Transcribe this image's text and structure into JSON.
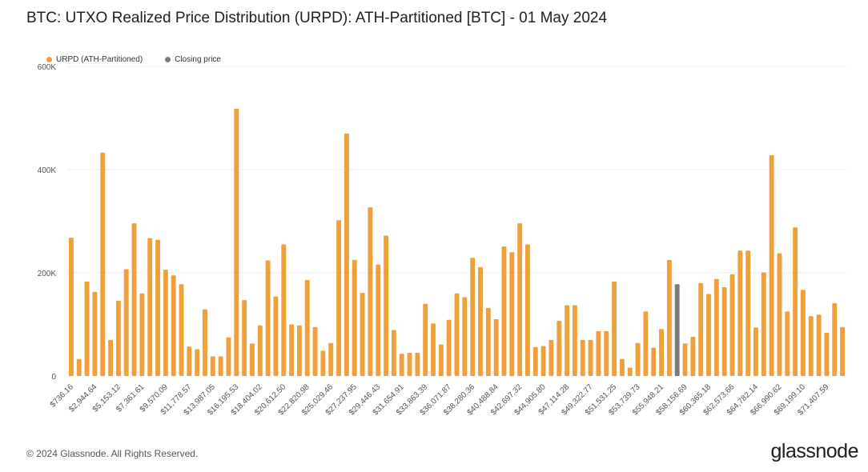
{
  "title": "BTC: UTXO Realized Price Distribution (URPD): ATH-Partitioned [BTC] - 01 May 2024",
  "legend": {
    "urpd": "URPD (ATH-Partitioned)",
    "closing": "Closing price"
  },
  "footer": "© 2024 Glassnode. All Rights Reserved.",
  "logo": "glassnode",
  "colors": {
    "bar": "#f0a03a",
    "closing": "#7a7a7a",
    "grid": "#eeeeee"
  },
  "chart_data": {
    "type": "bar",
    "title": "BTC: UTXO Realized Price Distribution (URPD): ATH-Partitioned [BTC] - 01 May 2024",
    "ylim": [
      0,
      600000
    ],
    "y_ticks": [
      0,
      200000,
      400000,
      600000
    ],
    "y_tick_labels": [
      "0",
      "200K",
      "400K",
      "600K"
    ],
    "x_tick_labels": [
      "$736.16",
      "$2,944.64",
      "$5,153.12",
      "$7,361.61",
      "$9,570.09",
      "$11,778.57",
      "$13,987.05",
      "$16,195.53",
      "$18,404.02",
      "$20,612.50",
      "$22,820.98",
      "$25,029.46",
      "$27,237.95",
      "$29,446.43",
      "$31,654.91",
      "$33,863.39",
      "$36,071.87",
      "$38,280.36",
      "$40,488.84",
      "$42,697.32",
      "$44,905.80",
      "$47,114.28",
      "$49,322.77",
      "$51,531.25",
      "$53,739.73",
      "$55,948.21",
      "$58,156.69",
      "$60,365.18",
      "$62,573.66",
      "$64,782.14",
      "$66,990.62",
      "$69,199.10",
      "$71,407.59"
    ],
    "closing_bar_index": 77,
    "series": [
      {
        "name": "URPD (ATH-Partitioned)",
        "values": [
          268000,
          33000,
          183000,
          163000,
          433000,
          70000,
          146000,
          207000,
          296000,
          160000,
          267000,
          264000,
          206000,
          195000,
          178000,
          57000,
          52000,
          129000,
          38000,
          38000,
          75000,
          518000,
          147000,
          63000,
          98000,
          224000,
          154000,
          255000,
          100000,
          98000,
          186000,
          95000,
          49000,
          64000,
          302000,
          470000,
          225000,
          161000,
          327000,
          216000,
          272000,
          89000,
          43000,
          45000,
          45000,
          140000,
          102000,
          61000,
          109000,
          160000,
          153000,
          229000,
          211000,
          132000,
          110000,
          251000,
          240000,
          296000,
          255000,
          56000,
          58000,
          70000,
          107000,
          137000,
          137000,
          70000,
          70000,
          87000,
          87000,
          183000,
          33000,
          16000,
          64000,
          125000,
          55000,
          91000,
          225000,
          178000,
          63000,
          76000,
          180000,
          159000,
          188000,
          172000,
          197000,
          243000,
          243000,
          94000,
          201000,
          428000,
          238000,
          125000,
          288000,
          167000,
          116000,
          119000,
          84000,
          141000,
          95000
        ]
      }
    ]
  }
}
